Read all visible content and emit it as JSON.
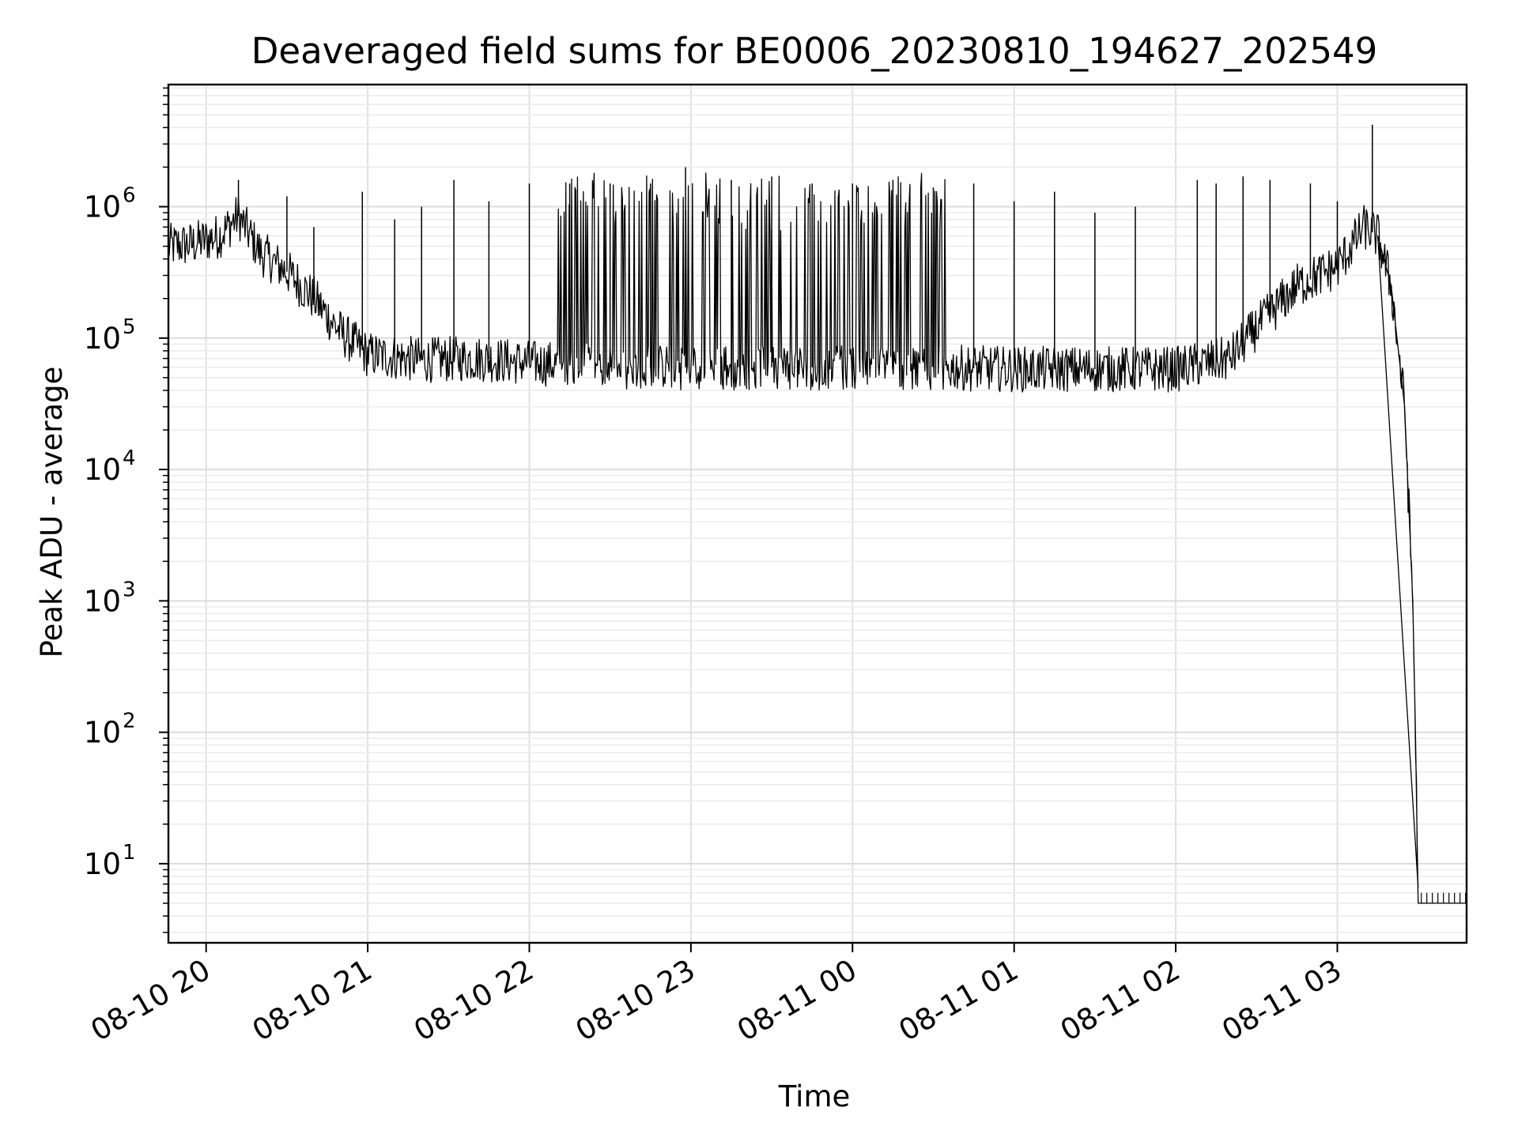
{
  "chart_data": {
    "type": "line",
    "title": "Deaveraged field sums for BE0006_20230810_194627_202549",
    "xlabel": "Time",
    "ylabel": "Peak ADU - average",
    "yscale": "log",
    "ylim": [
      2.5,
      8500000
    ],
    "xlim": [
      "2023-08-10 19:46",
      "2023-08-11 03:48"
    ],
    "grid": "on (major and minor)",
    "x_ticks": [
      "08-10 20",
      "08-10 21",
      "08-10 22",
      "08-10 23",
      "08-11 00",
      "08-11 01",
      "08-11 02",
      "08-11 03"
    ],
    "y_ticks": [
      {
        "base": "10",
        "exp": "1"
      },
      {
        "base": "10",
        "exp": "2"
      },
      {
        "base": "10",
        "exp": "3"
      },
      {
        "base": "10",
        "exp": "4"
      },
      {
        "base": "10",
        "exp": "5"
      },
      {
        "base": "10",
        "exp": "6"
      }
    ],
    "series": [
      {
        "line_color": "#000000",
        "baseline_points": [
          {
            "x": "2023-08-10 19:46",
            "y": 500000
          },
          {
            "x": "2023-08-10 19:55",
            "y": 520000
          },
          {
            "x": "2023-08-10 20:05",
            "y": 600000
          },
          {
            "x": "2023-08-10 20:12",
            "y": 850000
          },
          {
            "x": "2023-08-10 20:20",
            "y": 450000
          },
          {
            "x": "2023-08-10 20:30",
            "y": 320000
          },
          {
            "x": "2023-08-10 20:40",
            "y": 200000
          },
          {
            "x": "2023-08-10 20:50",
            "y": 110000
          },
          {
            "x": "2023-08-10 21:00",
            "y": 75000
          },
          {
            "x": "2023-08-10 21:20",
            "y": 68000
          },
          {
            "x": "2023-08-10 21:40",
            "y": 70000
          },
          {
            "x": "2023-08-10 22:00",
            "y": 65000
          },
          {
            "x": "2023-08-10 22:30",
            "y": 60000
          },
          {
            "x": "2023-08-10 23:00",
            "y": 60000
          },
          {
            "x": "2023-08-10 23:30",
            "y": 60000
          },
          {
            "x": "2023-08-11 00:00",
            "y": 60000
          },
          {
            "x": "2023-08-11 00:30",
            "y": 60000
          },
          {
            "x": "2023-08-11 01:00",
            "y": 58000
          },
          {
            "x": "2023-08-11 01:30",
            "y": 58000
          },
          {
            "x": "2023-08-11 02:00",
            "y": 58000
          },
          {
            "x": "2023-08-11 02:20",
            "y": 70000
          },
          {
            "x": "2023-08-11 02:30",
            "y": 120000
          },
          {
            "x": "2023-08-11 02:45",
            "y": 250000
          },
          {
            "x": "2023-08-11 03:00",
            "y": 350000
          },
          {
            "x": "2023-08-11 03:10",
            "y": 700000
          },
          {
            "x": "2023-08-11 03:15",
            "y": 600000
          },
          {
            "x": "2023-08-11 03:20",
            "y": 250000
          },
          {
            "x": "2023-08-11 03:25",
            "y": 30000
          },
          {
            "x": "2023-08-11 03:28",
            "y": 1000
          },
          {
            "x": "2023-08-11 03:29",
            "y": 100
          },
          {
            "x": "2023-08-11 03:30",
            "y": 5
          },
          {
            "x": "2023-08-11 03:48",
            "y": 5
          }
        ],
        "spikes": [
          {
            "x": "2023-08-10 20:12",
            "y": 1600000
          },
          {
            "x": "2023-08-10 20:30",
            "y": 1200000
          },
          {
            "x": "2023-08-10 20:40",
            "y": 700000
          },
          {
            "x": "2023-08-10 20:58",
            "y": 1300000
          },
          {
            "x": "2023-08-10 21:10",
            "y": 800000
          },
          {
            "x": "2023-08-10 21:20",
            "y": 1000000
          },
          {
            "x": "2023-08-10 21:32",
            "y": 1600000
          },
          {
            "x": "2023-08-10 21:45",
            "y": 1100000
          },
          {
            "x": "2023-08-10 22:00",
            "y": 1500000
          },
          {
            "x": "2023-08-10 22:15",
            "y": 1500000
          },
          {
            "x": "2023-08-10 22:30",
            "y": 1500000
          },
          {
            "x": "2023-08-10 22:45",
            "y": 1500000
          },
          {
            "x": "2023-08-10 22:58",
            "y": 2000000
          },
          {
            "x": "2023-08-10 23:15",
            "y": 1600000
          },
          {
            "x": "2023-08-10 23:30",
            "y": 1700000
          },
          {
            "x": "2023-08-10 23:45",
            "y": 1500000
          },
          {
            "x": "2023-08-11 00:00",
            "y": 1500000
          },
          {
            "x": "2023-08-11 00:15",
            "y": 1600000
          },
          {
            "x": "2023-08-11 00:30",
            "y": 1400000
          },
          {
            "x": "2023-08-11 00:45",
            "y": 1500000
          },
          {
            "x": "2023-08-11 01:00",
            "y": 1100000
          },
          {
            "x": "2023-08-11 01:15",
            "y": 1300000
          },
          {
            "x": "2023-08-11 01:30",
            "y": 900000
          },
          {
            "x": "2023-08-11 01:45",
            "y": 1000000
          },
          {
            "x": "2023-08-11 02:08",
            "y": 1600000
          },
          {
            "x": "2023-08-11 02:15",
            "y": 1500000
          },
          {
            "x": "2023-08-11 02:25",
            "y": 1700000
          },
          {
            "x": "2023-08-11 02:35",
            "y": 1600000
          },
          {
            "x": "2023-08-11 02:50",
            "y": 1500000
          },
          {
            "x": "2023-08-11 03:00",
            "y": 1100000
          },
          {
            "x": "2023-08-11 03:13",
            "y": 4200000
          }
        ]
      }
    ]
  }
}
